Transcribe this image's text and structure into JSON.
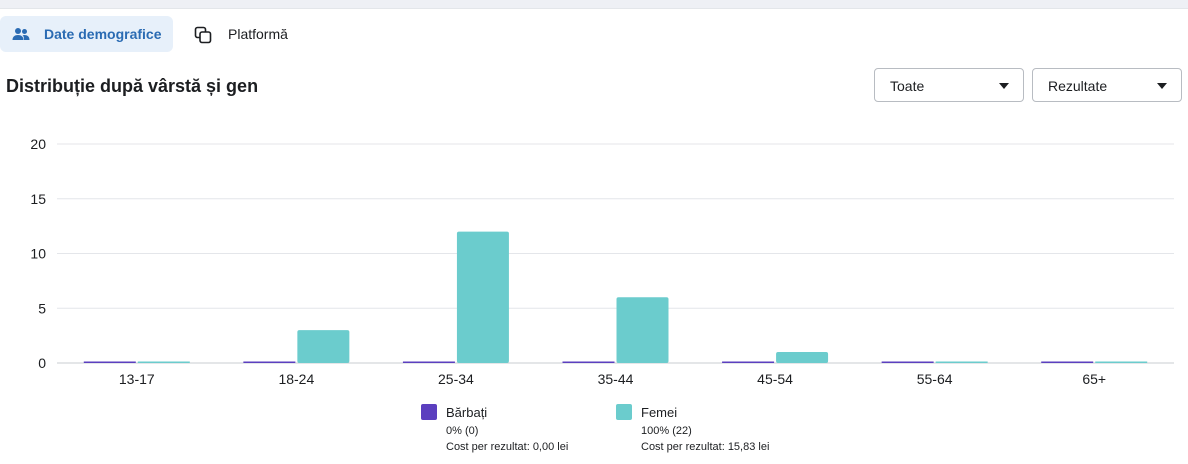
{
  "tabs": [
    {
      "label": "Date demografice",
      "active": true
    },
    {
      "label": "Platformă",
      "active": false
    }
  ],
  "section_title": "Distribuție după vârstă și gen",
  "filters": {
    "scope": "Toate",
    "metric": "Rezultate"
  },
  "colors": {
    "men": "#5b3fbf",
    "women": "#6bcccd",
    "accent": "#2a6bb3"
  },
  "chart_data": {
    "type": "bar",
    "categories": [
      "13-17",
      "18-24",
      "25-34",
      "35-44",
      "45-54",
      "55-64",
      "65+"
    ],
    "series": [
      {
        "name": "Bărbați",
        "values": [
          0,
          0,
          0,
          0,
          0,
          0,
          0
        ]
      },
      {
        "name": "Femei",
        "values": [
          0,
          3,
          12,
          6,
          1,
          0,
          0
        ]
      }
    ],
    "yticks": [
      0,
      5,
      10,
      15,
      20
    ],
    "ylim": [
      0,
      20
    ],
    "grid": true,
    "legend_position": "bottom"
  },
  "legend": [
    {
      "name": "Bărbați",
      "pct": "0% (0)",
      "cost": "Cost per rezultat: 0,00 lei"
    },
    {
      "name": "Femei",
      "pct": "100% (22)",
      "cost": "Cost per rezultat: 15,83 lei"
    }
  ]
}
